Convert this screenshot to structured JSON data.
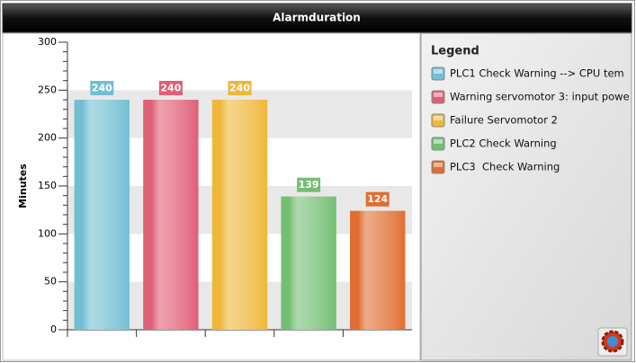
{
  "chart_data": {
    "type": "bar",
    "title": "Alarmduration",
    "y_label": "Minutes",
    "legend_title": "Legend",
    "ylim": [
      0,
      300
    ],
    "yticks": [
      0,
      50,
      100,
      150,
      200,
      250,
      300
    ],
    "grid": true,
    "series": [
      {
        "name": "PLC1 Check Warning --> CPU tem",
        "color": "#72bfd3",
        "values": [
          240
        ]
      },
      {
        "name": "Warning servomotor 3: input powe",
        "color": "#df5f76",
        "values": [
          240
        ]
      },
      {
        "name": "Failure Servomotor 2",
        "color": "#efb73a",
        "values": [
          240
        ]
      },
      {
        "name": "PLC2 Check Warning",
        "color": "#74be74",
        "values": [
          139
        ]
      },
      {
        "name": "PLC3  Check Warning",
        "color": "#e06e32",
        "values": [
          124
        ]
      }
    ]
  }
}
